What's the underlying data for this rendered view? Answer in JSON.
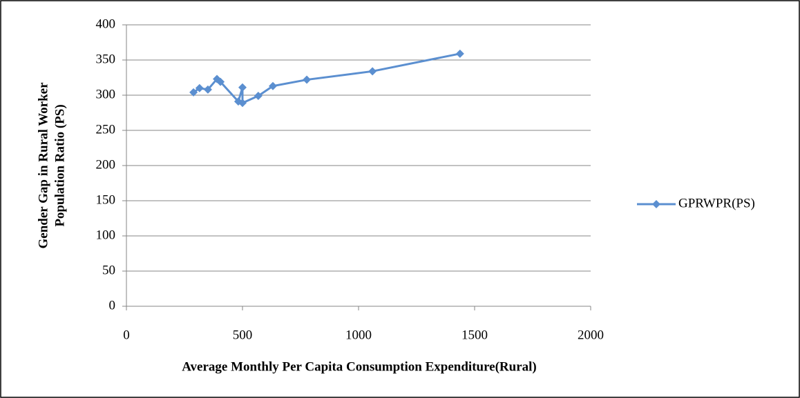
{
  "chart_data": {
    "type": "line",
    "xlabel": "Average Monthly Per Capita Consumption Expenditure(Rural)",
    "ylabel": [
      "Gender Gap in Rural Worker",
      "Population Ratio (PS)"
    ],
    "x": [
      289,
      315,
      351,
      390,
      405,
      482,
      500,
      500,
      568,
      631,
      777,
      1060,
      1437
    ],
    "series": [
      {
        "name": "GPRWPR(PS)",
        "color": "#5b8fd0",
        "values": [
          304,
          310,
          308,
          323,
          319,
          291,
          311,
          289,
          299,
          313,
          322,
          334,
          359
        ]
      }
    ],
    "xlim": [
      0,
      2000
    ],
    "xticks": [
      0,
      500,
      1000,
      1500,
      2000
    ],
    "ylim": [
      0,
      400
    ],
    "yticks": [
      0,
      50,
      100,
      150,
      200,
      250,
      300,
      350,
      400
    ],
    "grid": true,
    "legend": "right"
  }
}
